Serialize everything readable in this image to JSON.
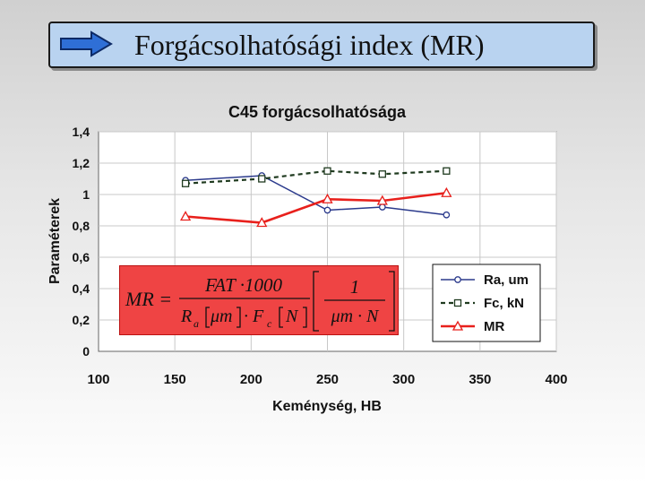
{
  "slide_title": "Forgácsolhatósági index (MR)",
  "icons": {
    "title_arrow": "right-arrow-icon"
  },
  "formula": {
    "lhs": "MR =",
    "num1": "FAT ·1000",
    "den1_a": "R",
    "den1_a_sub": "a",
    "den1_b": "μm",
    "den1_c": "· F",
    "den1_c_sub": "c",
    "den1_d": "N",
    "num2": "1",
    "den2": "μm · N"
  },
  "chart_data": {
    "type": "line",
    "title": "C45 forgácsolhatósága",
    "xlabel": "Keménység, HB",
    "ylabel": "Paraméterek",
    "xlim": [
      100,
      400
    ],
    "ylim": [
      0,
      1.4
    ],
    "xticks": [
      100,
      150,
      200,
      250,
      300,
      350,
      400
    ],
    "xtick_labels": [
      "100",
      "150",
      "200",
      "250",
      "300",
      "350",
      "400"
    ],
    "yticks": [
      0,
      0.2,
      0.4,
      0.6,
      0.8,
      1,
      1.2,
      1.4
    ],
    "ytick_labels": [
      "0",
      "0,2",
      "0,4",
      "0,6",
      "0,8",
      "1",
      "1,2",
      "1,4"
    ],
    "grid": true,
    "legend_position": "bottom-right",
    "series": [
      {
        "name": "Ra, um",
        "color": "#2b3a8c",
        "dash": "solid",
        "marker": "circle",
        "x": [
          157,
          207,
          250,
          286,
          328
        ],
        "y": [
          1.09,
          1.12,
          0.9,
          0.92,
          0.87
        ]
      },
      {
        "name": "Fc, kN",
        "color": "#1f3a1f",
        "dash": "dashed",
        "marker": "square",
        "x": [
          157,
          207,
          250,
          286,
          328
        ],
        "y": [
          1.07,
          1.1,
          1.15,
          1.13,
          1.15
        ]
      },
      {
        "name": "MR",
        "color": "#e8201c",
        "dash": "solid",
        "marker": "triangle",
        "x": [
          157,
          207,
          250,
          286,
          328
        ],
        "y": [
          0.86,
          0.82,
          0.97,
          0.96,
          1.01
        ]
      }
    ]
  }
}
